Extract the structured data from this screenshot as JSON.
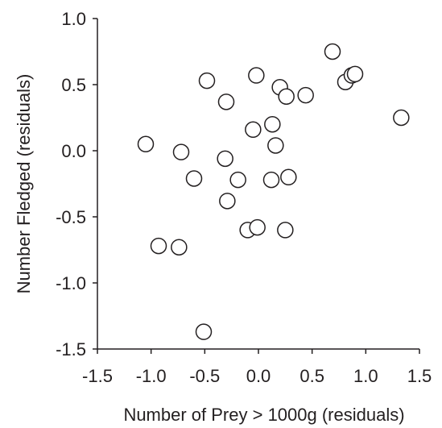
{
  "chart_data": {
    "type": "scatter",
    "title": "",
    "xlabel": "Number of Prey > 1000g (residuals)",
    "ylabel": "Number Fledged (residuals)",
    "xlim": [
      -1.5,
      1.5
    ],
    "ylim": [
      -1.5,
      1.0
    ],
    "x_ticks": [
      -1.5,
      -1.0,
      -0.5,
      0.0,
      0.5,
      1.0,
      1.5
    ],
    "x_tick_labels": [
      "-1.5",
      "-1.0",
      "-0.5",
      "0.0",
      "0.5",
      "1.0",
      "1.5"
    ],
    "y_ticks": [
      1.0,
      0.5,
      0.0,
      -0.5,
      -1.0,
      -1.5
    ],
    "y_tick_labels": [
      "1.0",
      "0.5",
      "0.0",
      "-0.5",
      "-1.0",
      "-1.5"
    ],
    "grid": false,
    "marker": "open-circle",
    "points": [
      {
        "x": -1.05,
        "y": 0.05
      },
      {
        "x": -0.93,
        "y": -0.72
      },
      {
        "x": -0.74,
        "y": -0.73
      },
      {
        "x": -0.72,
        "y": -0.01
      },
      {
        "x": -0.6,
        "y": -0.21
      },
      {
        "x": -0.51,
        "y": -1.37
      },
      {
        "x": -0.48,
        "y": 0.53
      },
      {
        "x": -0.3,
        "y": 0.37
      },
      {
        "x": -0.31,
        "y": -0.06
      },
      {
        "x": -0.29,
        "y": -0.38
      },
      {
        "x": -0.19,
        "y": -0.22
      },
      {
        "x": -0.1,
        "y": -0.6
      },
      {
        "x": -0.05,
        "y": 0.16
      },
      {
        "x": -0.02,
        "y": 0.57
      },
      {
        "x": -0.01,
        "y": -0.58
      },
      {
        "x": 0.12,
        "y": -0.22
      },
      {
        "x": 0.13,
        "y": 0.2
      },
      {
        "x": 0.16,
        "y": 0.04
      },
      {
        "x": 0.2,
        "y": 0.48
      },
      {
        "x": 0.25,
        "y": -0.6
      },
      {
        "x": 0.26,
        "y": 0.41
      },
      {
        "x": 0.28,
        "y": -0.2
      },
      {
        "x": 0.44,
        "y": 0.42
      },
      {
        "x": 0.69,
        "y": 0.75
      },
      {
        "x": 0.81,
        "y": 0.52
      },
      {
        "x": 0.87,
        "y": 0.57
      },
      {
        "x": 0.9,
        "y": 0.58
      },
      {
        "x": 1.33,
        "y": 0.25
      }
    ]
  }
}
